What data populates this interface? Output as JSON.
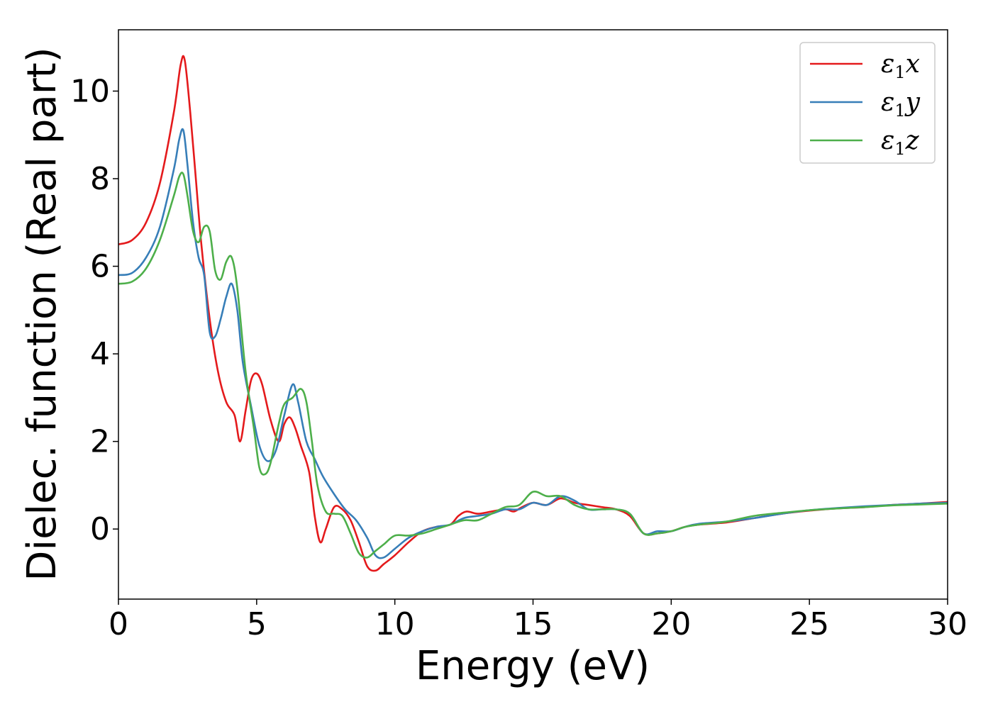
{
  "chart_data": {
    "type": "line",
    "title": "",
    "xlabel": "Energy (eV)",
    "ylabel": "Dielec. function (Real part)",
    "xlim": [
      0,
      30
    ],
    "ylim": [
      -1.6,
      11.4
    ],
    "xticks": [
      0,
      5,
      10,
      15,
      20,
      25,
      30
    ],
    "yticks": [
      0,
      2,
      4,
      6,
      8,
      10
    ],
    "xtick_labels": [
      "0",
      "5",
      "10",
      "15",
      "20",
      "25",
      "30"
    ],
    "ytick_labels": [
      "0",
      "2",
      "4",
      "6",
      "8",
      "10"
    ],
    "grid": false,
    "legend_position": "top-right",
    "series": [
      {
        "name": "ε1x",
        "symbol": "ε",
        "sub": "1",
        "axis": "x",
        "color": "#e41a1c",
        "points": [
          [
            0,
            6.5
          ],
          [
            0.5,
            6.6
          ],
          [
            1.0,
            7.0
          ],
          [
            1.5,
            7.9
          ],
          [
            2.0,
            9.5
          ],
          [
            2.25,
            10.6
          ],
          [
            2.4,
            10.7
          ],
          [
            2.6,
            9.5
          ],
          [
            2.8,
            8.0
          ],
          [
            3.0,
            6.5
          ],
          [
            3.3,
            4.8
          ],
          [
            3.6,
            3.6
          ],
          [
            3.9,
            2.9
          ],
          [
            4.2,
            2.6
          ],
          [
            4.4,
            2.0
          ],
          [
            4.6,
            2.7
          ],
          [
            4.8,
            3.4
          ],
          [
            5.0,
            3.55
          ],
          [
            5.2,
            3.3
          ],
          [
            5.5,
            2.5
          ],
          [
            5.8,
            2.0
          ],
          [
            6.0,
            2.4
          ],
          [
            6.2,
            2.55
          ],
          [
            6.4,
            2.3
          ],
          [
            6.6,
            1.9
          ],
          [
            6.9,
            1.3
          ],
          [
            7.1,
            0.3
          ],
          [
            7.3,
            -0.3
          ],
          [
            7.5,
            0.0
          ],
          [
            7.8,
            0.5
          ],
          [
            8.1,
            0.45
          ],
          [
            8.4,
            0.2
          ],
          [
            8.7,
            -0.3
          ],
          [
            9.0,
            -0.85
          ],
          [
            9.3,
            -0.95
          ],
          [
            9.6,
            -0.8
          ],
          [
            10.0,
            -0.6
          ],
          [
            10.5,
            -0.3
          ],
          [
            11.0,
            -0.05
          ],
          [
            11.5,
            0.05
          ],
          [
            12.0,
            0.1
          ],
          [
            12.3,
            0.3
          ],
          [
            12.6,
            0.4
          ],
          [
            13.0,
            0.35
          ],
          [
            13.5,
            0.4
          ],
          [
            14.0,
            0.45
          ],
          [
            14.3,
            0.4
          ],
          [
            14.6,
            0.5
          ],
          [
            15.0,
            0.6
          ],
          [
            15.5,
            0.55
          ],
          [
            16.0,
            0.7
          ],
          [
            16.5,
            0.6
          ],
          [
            17.0,
            0.55
          ],
          [
            17.5,
            0.5
          ],
          [
            18.0,
            0.45
          ],
          [
            18.5,
            0.3
          ],
          [
            19.0,
            -0.1
          ],
          [
            19.5,
            -0.1
          ],
          [
            20.0,
            -0.05
          ],
          [
            20.5,
            0.05
          ],
          [
            21.0,
            0.1
          ],
          [
            22.0,
            0.15
          ],
          [
            23.0,
            0.25
          ],
          [
            24.0,
            0.35
          ],
          [
            25.0,
            0.42
          ],
          [
            26.0,
            0.47
          ],
          [
            27.0,
            0.5
          ],
          [
            28.0,
            0.55
          ],
          [
            29.0,
            0.58
          ],
          [
            30.0,
            0.62
          ]
        ]
      },
      {
        "name": "ε1y",
        "symbol": "ε",
        "sub": "1",
        "axis": "y",
        "color": "#377eb8",
        "points": [
          [
            0,
            5.8
          ],
          [
            0.5,
            5.85
          ],
          [
            1.0,
            6.2
          ],
          [
            1.5,
            6.9
          ],
          [
            2.0,
            8.2
          ],
          [
            2.2,
            8.9
          ],
          [
            2.35,
            9.1
          ],
          [
            2.5,
            8.3
          ],
          [
            2.7,
            7.0
          ],
          [
            2.9,
            6.2
          ],
          [
            3.1,
            5.8
          ],
          [
            3.3,
            4.5
          ],
          [
            3.5,
            4.4
          ],
          [
            3.7,
            4.8
          ],
          [
            3.9,
            5.3
          ],
          [
            4.1,
            5.6
          ],
          [
            4.3,
            5.0
          ],
          [
            4.5,
            3.8
          ],
          [
            4.8,
            2.8
          ],
          [
            5.1,
            1.9
          ],
          [
            5.4,
            1.55
          ],
          [
            5.7,
            1.8
          ],
          [
            6.0,
            2.6
          ],
          [
            6.3,
            3.3
          ],
          [
            6.5,
            2.9
          ],
          [
            6.8,
            2.0
          ],
          [
            7.1,
            1.6
          ],
          [
            7.4,
            1.2
          ],
          [
            7.8,
            0.8
          ],
          [
            8.2,
            0.45
          ],
          [
            8.6,
            0.2
          ],
          [
            9.0,
            -0.2
          ],
          [
            9.3,
            -0.6
          ],
          [
            9.6,
            -0.65
          ],
          [
            10.0,
            -0.45
          ],
          [
            10.5,
            -0.2
          ],
          [
            11.0,
            -0.05
          ],
          [
            11.5,
            0.05
          ],
          [
            12.0,
            0.1
          ],
          [
            12.5,
            0.25
          ],
          [
            13.0,
            0.3
          ],
          [
            13.5,
            0.35
          ],
          [
            14.0,
            0.45
          ],
          [
            14.5,
            0.45
          ],
          [
            15.0,
            0.6
          ],
          [
            15.5,
            0.55
          ],
          [
            16.0,
            0.75
          ],
          [
            16.5,
            0.65
          ],
          [
            17.0,
            0.45
          ],
          [
            17.5,
            0.45
          ],
          [
            18.0,
            0.45
          ],
          [
            18.5,
            0.35
          ],
          [
            19.0,
            -0.1
          ],
          [
            19.5,
            -0.05
          ],
          [
            20.0,
            -0.05
          ],
          [
            20.5,
            0.05
          ],
          [
            21.0,
            0.12
          ],
          [
            22.0,
            0.17
          ],
          [
            23.0,
            0.25
          ],
          [
            24.0,
            0.35
          ],
          [
            25.0,
            0.43
          ],
          [
            26.0,
            0.48
          ],
          [
            27.0,
            0.52
          ],
          [
            28.0,
            0.55
          ],
          [
            29.0,
            0.58
          ],
          [
            30.0,
            0.6
          ]
        ]
      },
      {
        "name": "ε1z",
        "symbol": "ε",
        "sub": "1",
        "axis": "z",
        "color": "#4daf4a",
        "points": [
          [
            0,
            5.6
          ],
          [
            0.5,
            5.65
          ],
          [
            1.0,
            5.95
          ],
          [
            1.5,
            6.6
          ],
          [
            2.0,
            7.6
          ],
          [
            2.2,
            8.05
          ],
          [
            2.35,
            8.1
          ],
          [
            2.5,
            7.6
          ],
          [
            2.7,
            6.8
          ],
          [
            2.9,
            6.55
          ],
          [
            3.1,
            6.9
          ],
          [
            3.3,
            6.8
          ],
          [
            3.5,
            5.9
          ],
          [
            3.7,
            5.7
          ],
          [
            3.9,
            6.1
          ],
          [
            4.1,
            6.2
          ],
          [
            4.3,
            5.5
          ],
          [
            4.6,
            3.6
          ],
          [
            4.9,
            2.3
          ],
          [
            5.1,
            1.4
          ],
          [
            5.3,
            1.25
          ],
          [
            5.5,
            1.5
          ],
          [
            5.8,
            2.4
          ],
          [
            6.0,
            2.85
          ],
          [
            6.3,
            3.0
          ],
          [
            6.6,
            3.2
          ],
          [
            6.8,
            2.9
          ],
          [
            7.0,
            2.0
          ],
          [
            7.2,
            1.0
          ],
          [
            7.5,
            0.4
          ],
          [
            7.8,
            0.35
          ],
          [
            8.1,
            0.3
          ],
          [
            8.4,
            -0.1
          ],
          [
            8.7,
            -0.55
          ],
          [
            9.0,
            -0.65
          ],
          [
            9.3,
            -0.5
          ],
          [
            9.6,
            -0.35
          ],
          [
            10.0,
            -0.15
          ],
          [
            10.5,
            -0.15
          ],
          [
            11.0,
            -0.1
          ],
          [
            11.5,
            0.0
          ],
          [
            12.0,
            0.1
          ],
          [
            12.5,
            0.2
          ],
          [
            13.0,
            0.2
          ],
          [
            13.5,
            0.35
          ],
          [
            14.0,
            0.5
          ],
          [
            14.5,
            0.55
          ],
          [
            15.0,
            0.85
          ],
          [
            15.5,
            0.75
          ],
          [
            16.0,
            0.75
          ],
          [
            16.5,
            0.55
          ],
          [
            17.0,
            0.45
          ],
          [
            17.5,
            0.45
          ],
          [
            18.0,
            0.45
          ],
          [
            18.5,
            0.35
          ],
          [
            19.0,
            -0.1
          ],
          [
            19.5,
            -0.1
          ],
          [
            20.0,
            -0.05
          ],
          [
            20.5,
            0.05
          ],
          [
            21.0,
            0.1
          ],
          [
            22.0,
            0.17
          ],
          [
            23.0,
            0.3
          ],
          [
            24.0,
            0.37
          ],
          [
            25.0,
            0.43
          ],
          [
            26.0,
            0.47
          ],
          [
            27.0,
            0.5
          ],
          [
            28.0,
            0.54
          ],
          [
            29.0,
            0.56
          ],
          [
            30.0,
            0.58
          ]
        ]
      }
    ]
  }
}
